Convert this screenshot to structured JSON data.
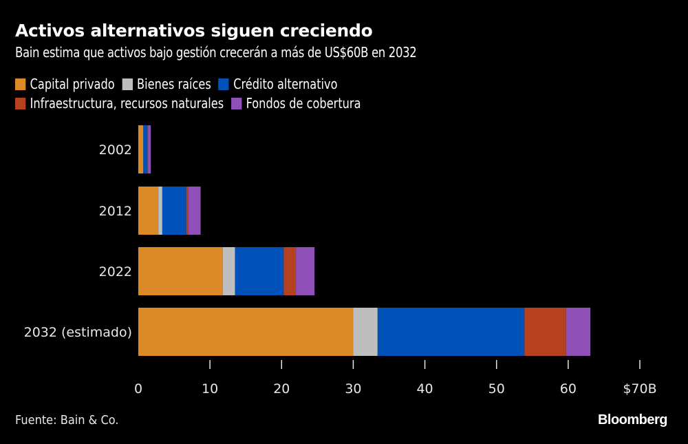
{
  "chart_data": {
    "type": "bar",
    "orientation": "horizontal",
    "stacked": true,
    "title": "Activos alternativos siguen creciendo",
    "subtitle": "Bain estima que activos bajo gestión crecerán a más de US$60B en 2032",
    "categories": [
      "2002",
      "2012",
      "2022",
      "2032 (estimado)"
    ],
    "series": [
      {
        "name": "Capital privado",
        "color": "#DB8A27",
        "values": [
          0.7,
          2.8,
          11.8,
          30.0
        ]
      },
      {
        "name": "Bienes raíces",
        "color": "#BEBEBE",
        "values": [
          0.0,
          0.55,
          1.7,
          3.4
        ]
      },
      {
        "name": "Crédito alternativo",
        "color": "#0052B9",
        "values": [
          0.6,
          3.35,
          6.8,
          20.5
        ]
      },
      {
        "name": "Infraestructura, recursos naturales",
        "color": "#B5411F",
        "values": [
          0.05,
          0.3,
          1.7,
          5.8
        ]
      },
      {
        "name": "Fondos de cobertura",
        "color": "#8F51B7",
        "values": [
          0.4,
          1.7,
          2.6,
          3.4
        ]
      }
    ],
    "xlim": [
      0,
      70
    ],
    "xticks": [
      0,
      10,
      20,
      30,
      40,
      50,
      60,
      70
    ],
    "xtick_labels": [
      "0",
      "10",
      "20",
      "30",
      "40",
      "50",
      "60",
      "$70B"
    ],
    "xlabel": "",
    "ylabel": "",
    "grid": false,
    "legend_position": "top-left"
  },
  "legend": {
    "row1": [
      {
        "label": "Capital privado",
        "color": "#DB8A27"
      },
      {
        "label": "Bienes raíces",
        "color": "#BEBEBE"
      },
      {
        "label": "Crédito alternativo",
        "color": "#0052B9"
      }
    ],
    "row2": [
      {
        "label": "Infraestructura, recursos naturales",
        "color": "#B5411F"
      },
      {
        "label": "Fondos de cobertura",
        "color": "#8F51B7"
      }
    ]
  },
  "footer": {
    "source": "Fuente: Bain & Co.",
    "brand": "Bloomberg"
  }
}
